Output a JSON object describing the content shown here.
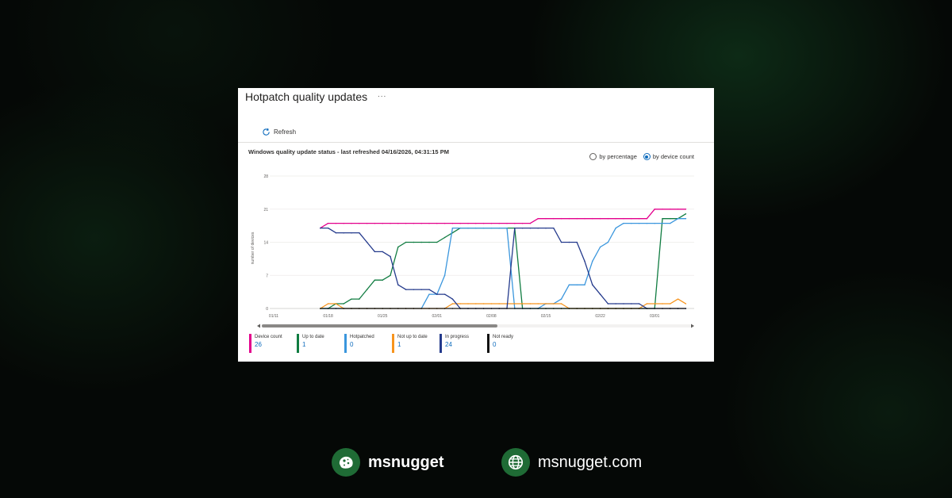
{
  "panel": {
    "title": "Hotpatch quality updates",
    "more_label": "...",
    "refresh_label": "Refresh",
    "status_title": "Windows quality update status - last refreshed 04/16/2026, 04:31:15 PM",
    "radio_by_percentage": "by percentage",
    "radio_by_device_count": "by device count",
    "radio_selected": "by device count"
  },
  "chart_data": {
    "type": "line",
    "ylabel": "number of devices",
    "ylim": [
      0,
      28
    ],
    "yticks": [
      "28",
      "21",
      "14",
      "7",
      "0"
    ],
    "xtick_labels": [
      "01/11",
      "01/18",
      "01/25",
      "02/01",
      "02/08",
      "02/15",
      "02/22",
      "03/01"
    ],
    "x": [
      "01/17",
      "01/18",
      "01/19",
      "01/20",
      "01/21",
      "01/22",
      "01/23",
      "01/24",
      "01/25",
      "01/26",
      "01/27",
      "01/28",
      "01/29",
      "01/30",
      "01/31",
      "02/01",
      "02/02",
      "02/03",
      "02/04",
      "02/05",
      "02/06",
      "02/07",
      "02/08",
      "02/09",
      "02/10",
      "02/11",
      "02/12",
      "02/13",
      "02/14",
      "02/15",
      "02/16",
      "02/17",
      "02/18",
      "02/19",
      "02/20",
      "02/21",
      "02/22",
      "02/23",
      "02/24",
      "02/25",
      "02/26",
      "02/27",
      "02/28",
      "03/01",
      "03/02",
      "03/03",
      "03/04",
      "03/05"
    ],
    "series": [
      {
        "name": "Device count",
        "color": "#e3008c",
        "values": [
          17,
          18,
          18,
          18,
          18,
          18,
          18,
          18,
          18,
          18,
          18,
          18,
          18,
          18,
          18,
          18,
          18,
          18,
          18,
          18,
          18,
          18,
          18,
          18,
          18,
          18,
          18,
          18,
          19,
          19,
          19,
          19,
          19,
          19,
          19,
          19,
          19,
          19,
          19,
          19,
          19,
          19,
          19,
          21,
          21,
          21,
          21,
          21
        ]
      },
      {
        "name": "Up to date",
        "color": "#107c41",
        "values": [
          0,
          0,
          1,
          1,
          2,
          2,
          4,
          6,
          6,
          7,
          13,
          14,
          14,
          14,
          14,
          14,
          15,
          16,
          17,
          17,
          17,
          17,
          17,
          17,
          17,
          17,
          0,
          0,
          0,
          0,
          0,
          0,
          0,
          0,
          0,
          0,
          0,
          0,
          0,
          0,
          0,
          0,
          0,
          0,
          19,
          19,
          19,
          20
        ]
      },
      {
        "name": "Hotpatched",
        "color": "#3a96dd",
        "values": [
          0,
          0,
          0,
          0,
          0,
          0,
          0,
          0,
          0,
          0,
          0,
          0,
          0,
          0,
          3,
          3,
          7,
          17,
          17,
          17,
          17,
          17,
          17,
          17,
          17,
          0,
          0,
          0,
          0,
          1,
          1,
          2,
          5,
          5,
          5,
          10,
          13,
          14,
          17,
          18,
          18,
          18,
          18,
          18,
          18,
          18,
          19,
          19
        ]
      },
      {
        "name": "Not up to date",
        "color": "#f7941d",
        "values": [
          0,
          1,
          1,
          0,
          0,
          0,
          0,
          0,
          0,
          0,
          0,
          0,
          0,
          0,
          0,
          0,
          0,
          1,
          1,
          1,
          1,
          1,
          1,
          1,
          1,
          1,
          1,
          1,
          1,
          1,
          1,
          1,
          0,
          0,
          0,
          0,
          0,
          0,
          0,
          0,
          0,
          0,
          1,
          1,
          1,
          1,
          2,
          1
        ]
      },
      {
        "name": "In progress",
        "color": "#243a8c",
        "values": [
          17,
          17,
          16,
          16,
          16,
          16,
          14,
          12,
          12,
          11,
          5,
          4,
          4,
          4,
          4,
          3,
          3,
          2,
          0,
          0,
          0,
          0,
          0,
          0,
          0,
          17,
          17,
          17,
          17,
          17,
          17,
          14,
          14,
          14,
          10,
          5,
          3,
          1,
          1,
          1,
          1,
          1,
          0,
          0,
          0,
          0,
          0,
          0
        ]
      },
      {
        "name": "Not ready",
        "color": "#111111",
        "values": [
          0,
          0,
          0,
          0,
          0,
          0,
          0,
          0,
          0,
          0,
          0,
          0,
          0,
          0,
          0,
          0,
          0,
          0,
          0,
          0,
          0,
          0,
          0,
          0,
          0,
          0,
          0,
          0,
          0,
          0,
          0,
          0,
          0,
          0,
          0,
          0,
          0,
          0,
          0,
          0,
          0,
          0,
          0,
          0,
          0,
          0,
          0,
          0
        ]
      }
    ]
  },
  "legend": [
    {
      "name": "Device count",
      "value": "26",
      "color": "#e3008c"
    },
    {
      "name": "Up to date",
      "value": "1",
      "color": "#107c41"
    },
    {
      "name": "Hotpatched",
      "value": "0",
      "color": "#3a96dd"
    },
    {
      "name": "Not up to date",
      "value": "1",
      "color": "#f7941d"
    },
    {
      "name": "In progress",
      "value": "24",
      "color": "#243a8c"
    },
    {
      "name": "Not ready",
      "value": "0",
      "color": "#111111"
    }
  ],
  "footer": {
    "brand_name": "msnugget",
    "site_url": "msnugget.com"
  }
}
